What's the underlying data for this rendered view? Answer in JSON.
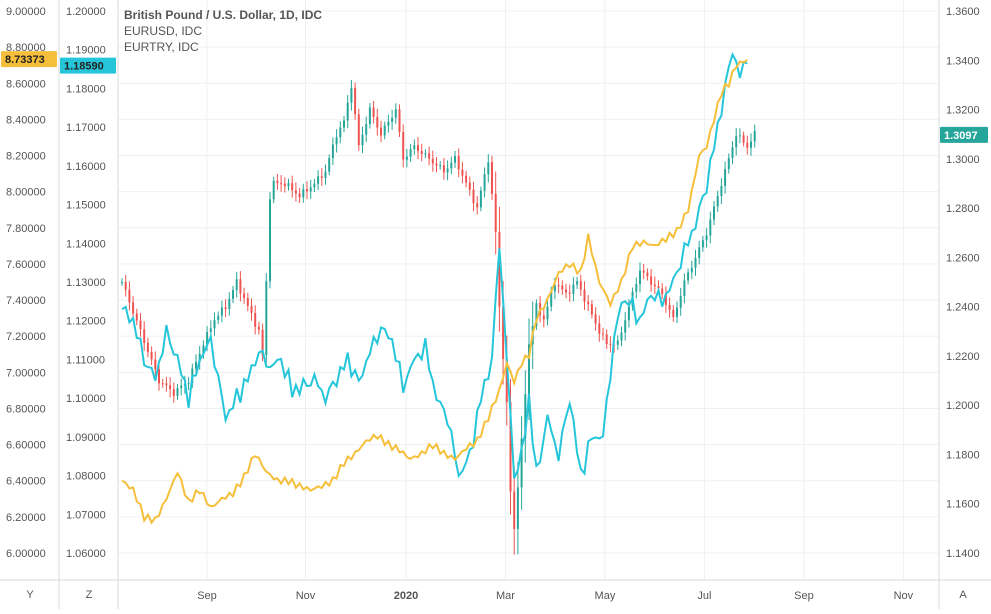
{
  "legend": {
    "main": "British Pound / U.S. Dollar, 1D, IDC",
    "s2": "EURUSD, IDC",
    "s3": "EURTRY, IDC"
  },
  "corner_buttons": {
    "y": "Y",
    "z": "Z",
    "a": "A"
  },
  "colors": {
    "up": "#26a69a",
    "down": "#ef5350",
    "eurusd": "#26c6da",
    "eurtry": "#f6bf3b",
    "grid": "#eef0f3",
    "axis_text": "#555555",
    "last_eurtry_tag": "#f6bf3b",
    "last_eurusd_tag": "#26c6da",
    "last_gbpusd_tag": "#26a69a"
  },
  "chart_data": {
    "type": "candlestick+line",
    "x_labels": [
      "Sep",
      "Nov",
      "2020",
      "Mar",
      "May",
      "Jul",
      "Sep",
      "Nov"
    ],
    "x_label_bold": "2020",
    "axes": {
      "eurtry": {
        "position": "left-outer",
        "min": 6.0,
        "max": 9.0,
        "ticks": [
          "9.00000",
          "8.80000",
          "8.60000",
          "8.40000",
          "8.20000",
          "8.00000",
          "7.80000",
          "7.60000",
          "7.40000",
          "7.20000",
          "7.00000",
          "6.80000",
          "6.60000",
          "6.40000",
          "6.20000",
          "6.00000"
        ]
      },
      "eurusd": {
        "position": "left-inner",
        "min": 1.06,
        "max": 1.2,
        "ticks": [
          "1.20000",
          "1.19000",
          "1.18000",
          "1.17000",
          "1.16000",
          "1.15000",
          "1.14000",
          "1.13000",
          "1.12000",
          "1.11000",
          "1.10000",
          "1.09000",
          "1.08000",
          "1.07000",
          "1.06000"
        ]
      },
      "gbpusd": {
        "position": "right",
        "min": 1.14,
        "max": 1.36,
        "ticks": [
          "1.3600",
          "1.3400",
          "1.3200",
          "1.3000",
          "1.2800",
          "1.2600",
          "1.2400",
          "1.2200",
          "1.2000",
          "1.1800",
          "1.1600",
          "1.1400"
        ]
      }
    },
    "last_values": {
      "eurtry": "8.73373",
      "eurusd": "1.18590",
      "gbpusd": "1.3097"
    },
    "series": [
      {
        "name": "British Pound / U.S. Dollar, 1D, IDC",
        "type": "candlestick",
        "anchors": [
          [
            0,
            1.25
          ],
          [
            5,
            1.23
          ],
          [
            10,
            1.21
          ],
          [
            14,
            1.205
          ],
          [
            18,
            1.21
          ],
          [
            22,
            1.225
          ],
          [
            25,
            1.235
          ],
          [
            28,
            1.24
          ],
          [
            31,
            1.25
          ],
          [
            34,
            1.24
          ],
          [
            37,
            1.23
          ],
          [
            38,
            1.22
          ],
          [
            39,
            1.25
          ],
          [
            40,
            1.285
          ],
          [
            41,
            1.29
          ],
          [
            44,
            1.29
          ],
          [
            48,
            1.285
          ],
          [
            52,
            1.29
          ],
          [
            55,
            1.295
          ],
          [
            58,
            1.31
          ],
          [
            60,
            1.315
          ],
          [
            62,
            1.33
          ],
          [
            64,
            1.305
          ],
          [
            67,
            1.32
          ],
          [
            70,
            1.31
          ],
          [
            74,
            1.32
          ],
          [
            76,
            1.3
          ],
          [
            79,
            1.305
          ],
          [
            83,
            1.3
          ],
          [
            87,
            1.295
          ],
          [
            90,
            1.3
          ],
          [
            93,
            1.29
          ],
          [
            96,
            1.28
          ],
          [
            99,
            1.3
          ],
          [
            100,
            1.285
          ],
          [
            101,
            1.27
          ],
          [
            102,
            1.24
          ],
          [
            104,
            1.2
          ],
          [
            105,
            1.165
          ],
          [
            106,
            1.15
          ],
          [
            108,
            1.185
          ],
          [
            110,
            1.225
          ],
          [
            112,
            1.24
          ],
          [
            114,
            1.235
          ],
          [
            117,
            1.25
          ],
          [
            120,
            1.245
          ],
          [
            123,
            1.25
          ],
          [
            126,
            1.24
          ],
          [
            129,
            1.23
          ],
          [
            131,
            1.225
          ],
          [
            134,
            1.225
          ],
          [
            137,
            1.24
          ],
          [
            140,
            1.255
          ],
          [
            143,
            1.25
          ],
          [
            146,
            1.245
          ],
          [
            149,
            1.235
          ],
          [
            152,
            1.25
          ],
          [
            155,
            1.26
          ],
          [
            158,
            1.27
          ],
          [
            161,
            1.285
          ],
          [
            164,
            1.3
          ],
          [
            166,
            1.31
          ],
          [
            169,
            1.305
          ],
          [
            171,
            1.31
          ]
        ]
      },
      {
        "name": "EURUSD, IDC",
        "type": "line",
        "anchors": [
          [
            0,
            1.123
          ],
          [
            3,
            1.12
          ],
          [
            6,
            1.11
          ],
          [
            9,
            1.105
          ],
          [
            12,
            1.117
          ],
          [
            15,
            1.11
          ],
          [
            18,
            1.1
          ],
          [
            21,
            1.11
          ],
          [
            24,
            1.115
          ],
          [
            26,
            1.105
          ],
          [
            28,
            1.095
          ],
          [
            31,
            1.1
          ],
          [
            34,
            1.105
          ],
          [
            37,
            1.112
          ],
          [
            40,
            1.108
          ],
          [
            43,
            1.11
          ],
          [
            46,
            1.102
          ],
          [
            49,
            1.103
          ],
          [
            52,
            1.105
          ],
          [
            55,
            1.1
          ],
          [
            58,
            1.105
          ],
          [
            61,
            1.11
          ],
          [
            64,
            1.104
          ],
          [
            67,
            1.112
          ],
          [
            70,
            1.118
          ],
          [
            73,
            1.115
          ],
          [
            76,
            1.103
          ],
          [
            79,
            1.11
          ],
          [
            82,
            1.113
          ],
          [
            85,
            1.1
          ],
          [
            88,
            1.095
          ],
          [
            91,
            1.08
          ],
          [
            94,
            1.085
          ],
          [
            97,
            1.1
          ],
          [
            100,
            1.11
          ],
          [
            102,
            1.14
          ],
          [
            104,
            1.11
          ],
          [
            106,
            1.08
          ],
          [
            108,
            1.085
          ],
          [
            110,
            1.1
          ],
          [
            112,
            1.08
          ],
          [
            115,
            1.095
          ],
          [
            118,
            1.085
          ],
          [
            121,
            1.1
          ],
          [
            124,
            1.08
          ],
          [
            127,
            1.09
          ],
          [
            130,
            1.09
          ],
          [
            133,
            1.115
          ],
          [
            135,
            1.125
          ],
          [
            137,
            1.125
          ],
          [
            140,
            1.12
          ],
          [
            143,
            1.127
          ],
          [
            146,
            1.125
          ],
          [
            149,
            1.13
          ],
          [
            152,
            1.138
          ],
          [
            155,
            1.145
          ],
          [
            158,
            1.155
          ],
          [
            161,
            1.17
          ],
          [
            163,
            1.18
          ],
          [
            165,
            1.19
          ],
          [
            167,
            1.183
          ],
          [
            169,
            1.188
          ]
        ]
      },
      {
        "name": "EURTRY, IDC",
        "type": "line",
        "anchors": [
          [
            0,
            6.4
          ],
          [
            3,
            6.35
          ],
          [
            6,
            6.2
          ],
          [
            9,
            6.18
          ],
          [
            12,
            6.3
          ],
          [
            15,
            6.45
          ],
          [
            18,
            6.28
          ],
          [
            21,
            6.35
          ],
          [
            24,
            6.25
          ],
          [
            27,
            6.3
          ],
          [
            30,
            6.33
          ],
          [
            33,
            6.42
          ],
          [
            36,
            6.55
          ],
          [
            39,
            6.45
          ],
          [
            42,
            6.4
          ],
          [
            45,
            6.4
          ],
          [
            48,
            6.37
          ],
          [
            51,
            6.35
          ],
          [
            54,
            6.37
          ],
          [
            57,
            6.4
          ],
          [
            60,
            6.5
          ],
          [
            63,
            6.55
          ],
          [
            66,
            6.62
          ],
          [
            69,
            6.65
          ],
          [
            72,
            6.6
          ],
          [
            75,
            6.57
          ],
          [
            78,
            6.52
          ],
          [
            81,
            6.55
          ],
          [
            84,
            6.6
          ],
          [
            87,
            6.55
          ],
          [
            90,
            6.52
          ],
          [
            93,
            6.58
          ],
          [
            96,
            6.62
          ],
          [
            99,
            6.75
          ],
          [
            102,
            6.9
          ],
          [
            104,
            7.05
          ],
          [
            106,
            6.95
          ],
          [
            108,
            7.05
          ],
          [
            110,
            7.1
          ],
          [
            112,
            7.3
          ],
          [
            115,
            7.4
          ],
          [
            118,
            7.55
          ],
          [
            121,
            7.6
          ],
          [
            124,
            7.55
          ],
          [
            126,
            7.75
          ],
          [
            129,
            7.5
          ],
          [
            132,
            7.38
          ],
          [
            135,
            7.5
          ],
          [
            138,
            7.7
          ],
          [
            141,
            7.72
          ],
          [
            144,
            7.7
          ],
          [
            147,
            7.74
          ],
          [
            150,
            7.78
          ],
          [
            153,
            7.9
          ],
          [
            156,
            8.2
          ],
          [
            158,
            8.25
          ],
          [
            160,
            8.4
          ],
          [
            162,
            8.55
          ],
          [
            164,
            8.6
          ],
          [
            166,
            8.7
          ],
          [
            169,
            8.73
          ]
        ]
      }
    ]
  }
}
